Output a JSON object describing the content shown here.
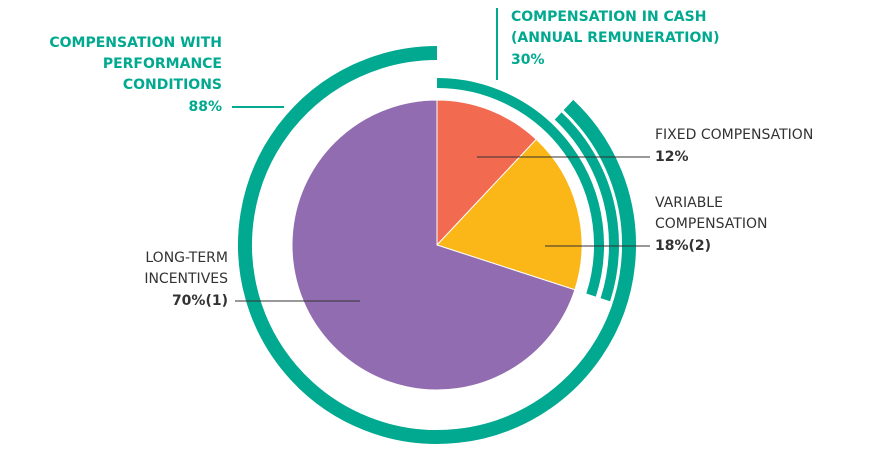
{
  "chart_data": {
    "type": "pie",
    "categories": [
      [
        "FIXED COMPENSATION"
      ],
      [
        "VARIABLE",
        "COMPENSATION"
      ],
      [
        "LONG-TERM",
        "INCENTIVES"
      ]
    ],
    "values": [
      12,
      18,
      70
    ],
    "value_labels": [
      "12%",
      "18%(2)",
      "70%(1)"
    ],
    "colors": [
      "#f26a50",
      "#fbb617",
      "#926cb0"
    ],
    "arcs": [
      {
        "label": [
          "COMPENSATION IN CASH",
          "(ANNUAL REMUNERATION)"
        ],
        "value": 30,
        "value_label": "30%"
      },
      {
        "label": [
          "COMPENSATION WITH",
          "PERFORMANCE",
          "CONDITIONS"
        ],
        "value": 88,
        "value_label": "88%"
      }
    ],
    "arc_color": "#00a98f"
  }
}
